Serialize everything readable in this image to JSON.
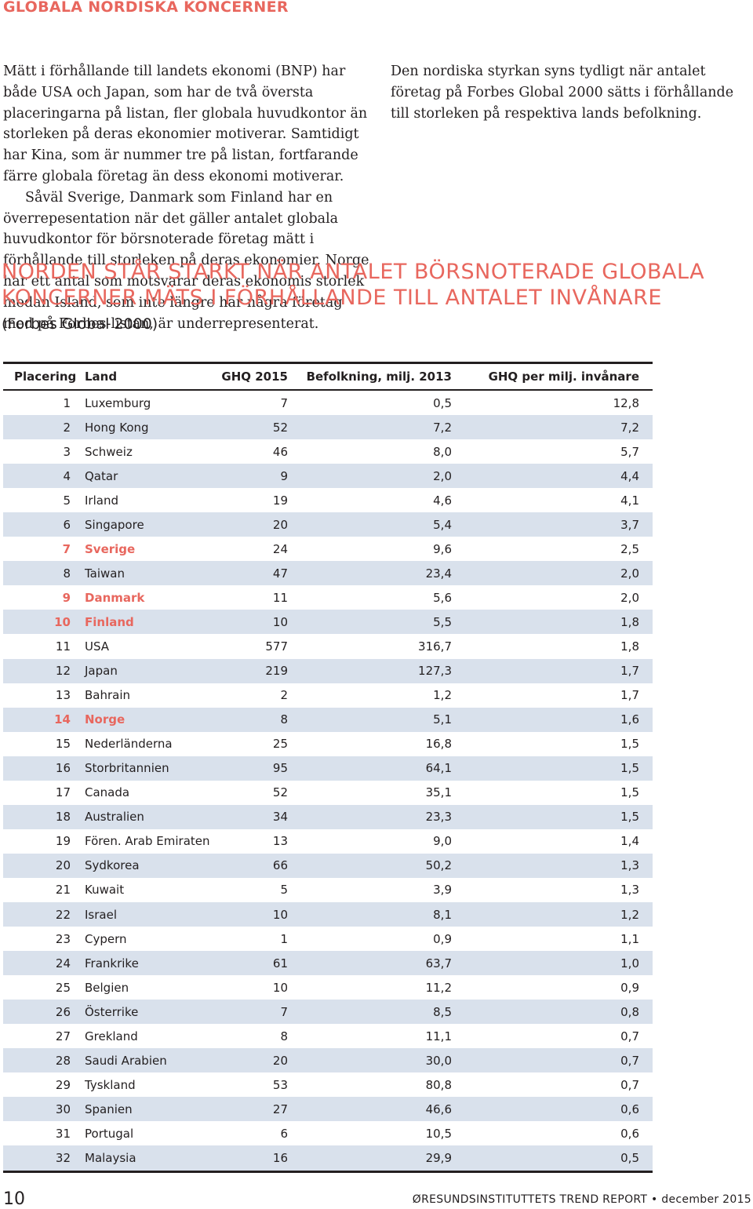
{
  "section_title": "GLOBALA NORDISKA KONCERNER",
  "intro_left_p1": "Mätt i förhållande till landets ekonomi (BNP) har både USA och Japan, som har de två översta placeringarna på listan, fler globala huvudkontor än storleken på deras ekonomier motiverar. Samtidigt har Kina, som är nummer tre på listan, fortfarande färre globala företag än dess ekonomi motiverar.",
  "intro_left_p2": "Såväl Sverige, Danmark som Finland har en överrepesentation när det gäller antalet globala huvudkontor för börsnoterade företag mätt i förhållande till storleken på deras ekonomier. Norge har ett antal som motsvarar deras ekonomis storlek medan Island, som inte längre har några företag med på Forbes-listan, är underrepresenterat.",
  "intro_right_p1": "Den nordiska styrkan syns tydligt när antalet företag på Forbes Global 2000 sätts i förhållande till storleken på respektiva lands befolkning.",
  "table_heading": "NORDEN STÅR STARKT NÄR ANTALET BÖRSNOTERADE GLOBALA KONCERNER MÄTS I FÖRHÅLLANDE TILL ANTALET INVÅNARE",
  "table_subheading": "(Forbes Global 2000)",
  "columns": {
    "rank": "Placering",
    "land": "Land",
    "ghq": "GHQ 2015",
    "pop": "Befolkning, milj. 2013",
    "per": "GHQ per milj. invånare"
  },
  "rows": [
    {
      "rank": "1",
      "land": "Luxemburg",
      "ghq": "7",
      "pop": "0,5",
      "per": "12,8"
    },
    {
      "rank": "2",
      "land": "Hong Kong",
      "ghq": "52",
      "pop": "7,2",
      "per": "7,2"
    },
    {
      "rank": "3",
      "land": "Schweiz",
      "ghq": "46",
      "pop": "8,0",
      "per": "5,7"
    },
    {
      "rank": "4",
      "land": "Qatar",
      "ghq": "9",
      "pop": "2,0",
      "per": "4,4"
    },
    {
      "rank": "5",
      "land": "Irland",
      "ghq": "19",
      "pop": "4,6",
      "per": "4,1"
    },
    {
      "rank": "6",
      "land": "Singapore",
      "ghq": "20",
      "pop": "5,4",
      "per": "3,7"
    },
    {
      "rank": "7",
      "land": "Sverige",
      "ghq": "24",
      "pop": "9,6",
      "per": "2,5"
    },
    {
      "rank": "8",
      "land": "Taiwan",
      "ghq": "47",
      "pop": "23,4",
      "per": "2,0"
    },
    {
      "rank": "9",
      "land": "Danmark",
      "ghq": "11",
      "pop": "5,6",
      "per": "2,0"
    },
    {
      "rank": "10",
      "land": "Finland",
      "ghq": "10",
      "pop": "5,5",
      "per": "1,8"
    },
    {
      "rank": "11",
      "land": "USA",
      "ghq": "577",
      "pop": "316,7",
      "per": "1,8"
    },
    {
      "rank": "12",
      "land": "Japan",
      "ghq": "219",
      "pop": "127,3",
      "per": "1,7"
    },
    {
      "rank": "13",
      "land": "Bahrain",
      "ghq": "2",
      "pop": "1,2",
      "per": "1,7"
    },
    {
      "rank": "14",
      "land": "Norge",
      "ghq": "8",
      "pop": "5,1",
      "per": "1,6"
    },
    {
      "rank": "15",
      "land": "Nederländerna",
      "ghq": "25",
      "pop": "16,8",
      "per": "1,5"
    },
    {
      "rank": "16",
      "land": "Storbritannien",
      "ghq": "95",
      "pop": "64,1",
      "per": "1,5"
    },
    {
      "rank": "17",
      "land": "Canada",
      "ghq": "52",
      "pop": "35,1",
      "per": "1,5"
    },
    {
      "rank": "18",
      "land": "Australien",
      "ghq": "34",
      "pop": "23,3",
      "per": "1,5"
    },
    {
      "rank": "19",
      "land": "Fören. Arab Emiraten",
      "ghq": "13",
      "pop": "9,0",
      "per": "1,4"
    },
    {
      "rank": "20",
      "land": "Sydkorea",
      "ghq": "66",
      "pop": "50,2",
      "per": "1,3"
    },
    {
      "rank": "21",
      "land": "Kuwait",
      "ghq": "5",
      "pop": "3,9",
      "per": "1,3"
    },
    {
      "rank": "22",
      "land": "Israel",
      "ghq": "10",
      "pop": "8,1",
      "per": "1,2"
    },
    {
      "rank": "23",
      "land": "Cypern",
      "ghq": "1",
      "pop": "0,9",
      "per": "1,1"
    },
    {
      "rank": "24",
      "land": "Frankrike",
      "ghq": "61",
      "pop": "63,7",
      "per": "1,0"
    },
    {
      "rank": "25",
      "land": "Belgien",
      "ghq": "10",
      "pop": "11,2",
      "per": "0,9"
    },
    {
      "rank": "26",
      "land": "Österrike",
      "ghq": "7",
      "pop": "8,5",
      "per": "0,8"
    },
    {
      "rank": "27",
      "land": "Grekland",
      "ghq": "8",
      "pop": "11,1",
      "per": "0,7"
    },
    {
      "rank": "28",
      "land": "Saudi Arabien",
      "ghq": "20",
      "pop": "30,0",
      "per": "0,7"
    },
    {
      "rank": "29",
      "land": "Tyskland",
      "ghq": "53",
      "pop": "80,8",
      "per": "0,7"
    },
    {
      "rank": "30",
      "land": "Spanien",
      "ghq": "27",
      "pop": "46,6",
      "per": "0,6"
    },
    {
      "rank": "31",
      "land": "Portugal",
      "ghq": "6",
      "pop": "10,5",
      "per": "0,6"
    },
    {
      "rank": "32",
      "land": "Malaysia",
      "ghq": "16",
      "pop": "29,9",
      "per": "0,5"
    }
  ],
  "highlight_lands": [
    "Sverige",
    "Danmark",
    "Finland",
    "Norge"
  ],
  "colors": {
    "accent": "#e8675e",
    "row_shade": "#d9e1ec"
  },
  "footer": {
    "page_number": "10",
    "brand": "ØRESUNDSINSTITUTTETS TREND REPORT • december 2015"
  }
}
